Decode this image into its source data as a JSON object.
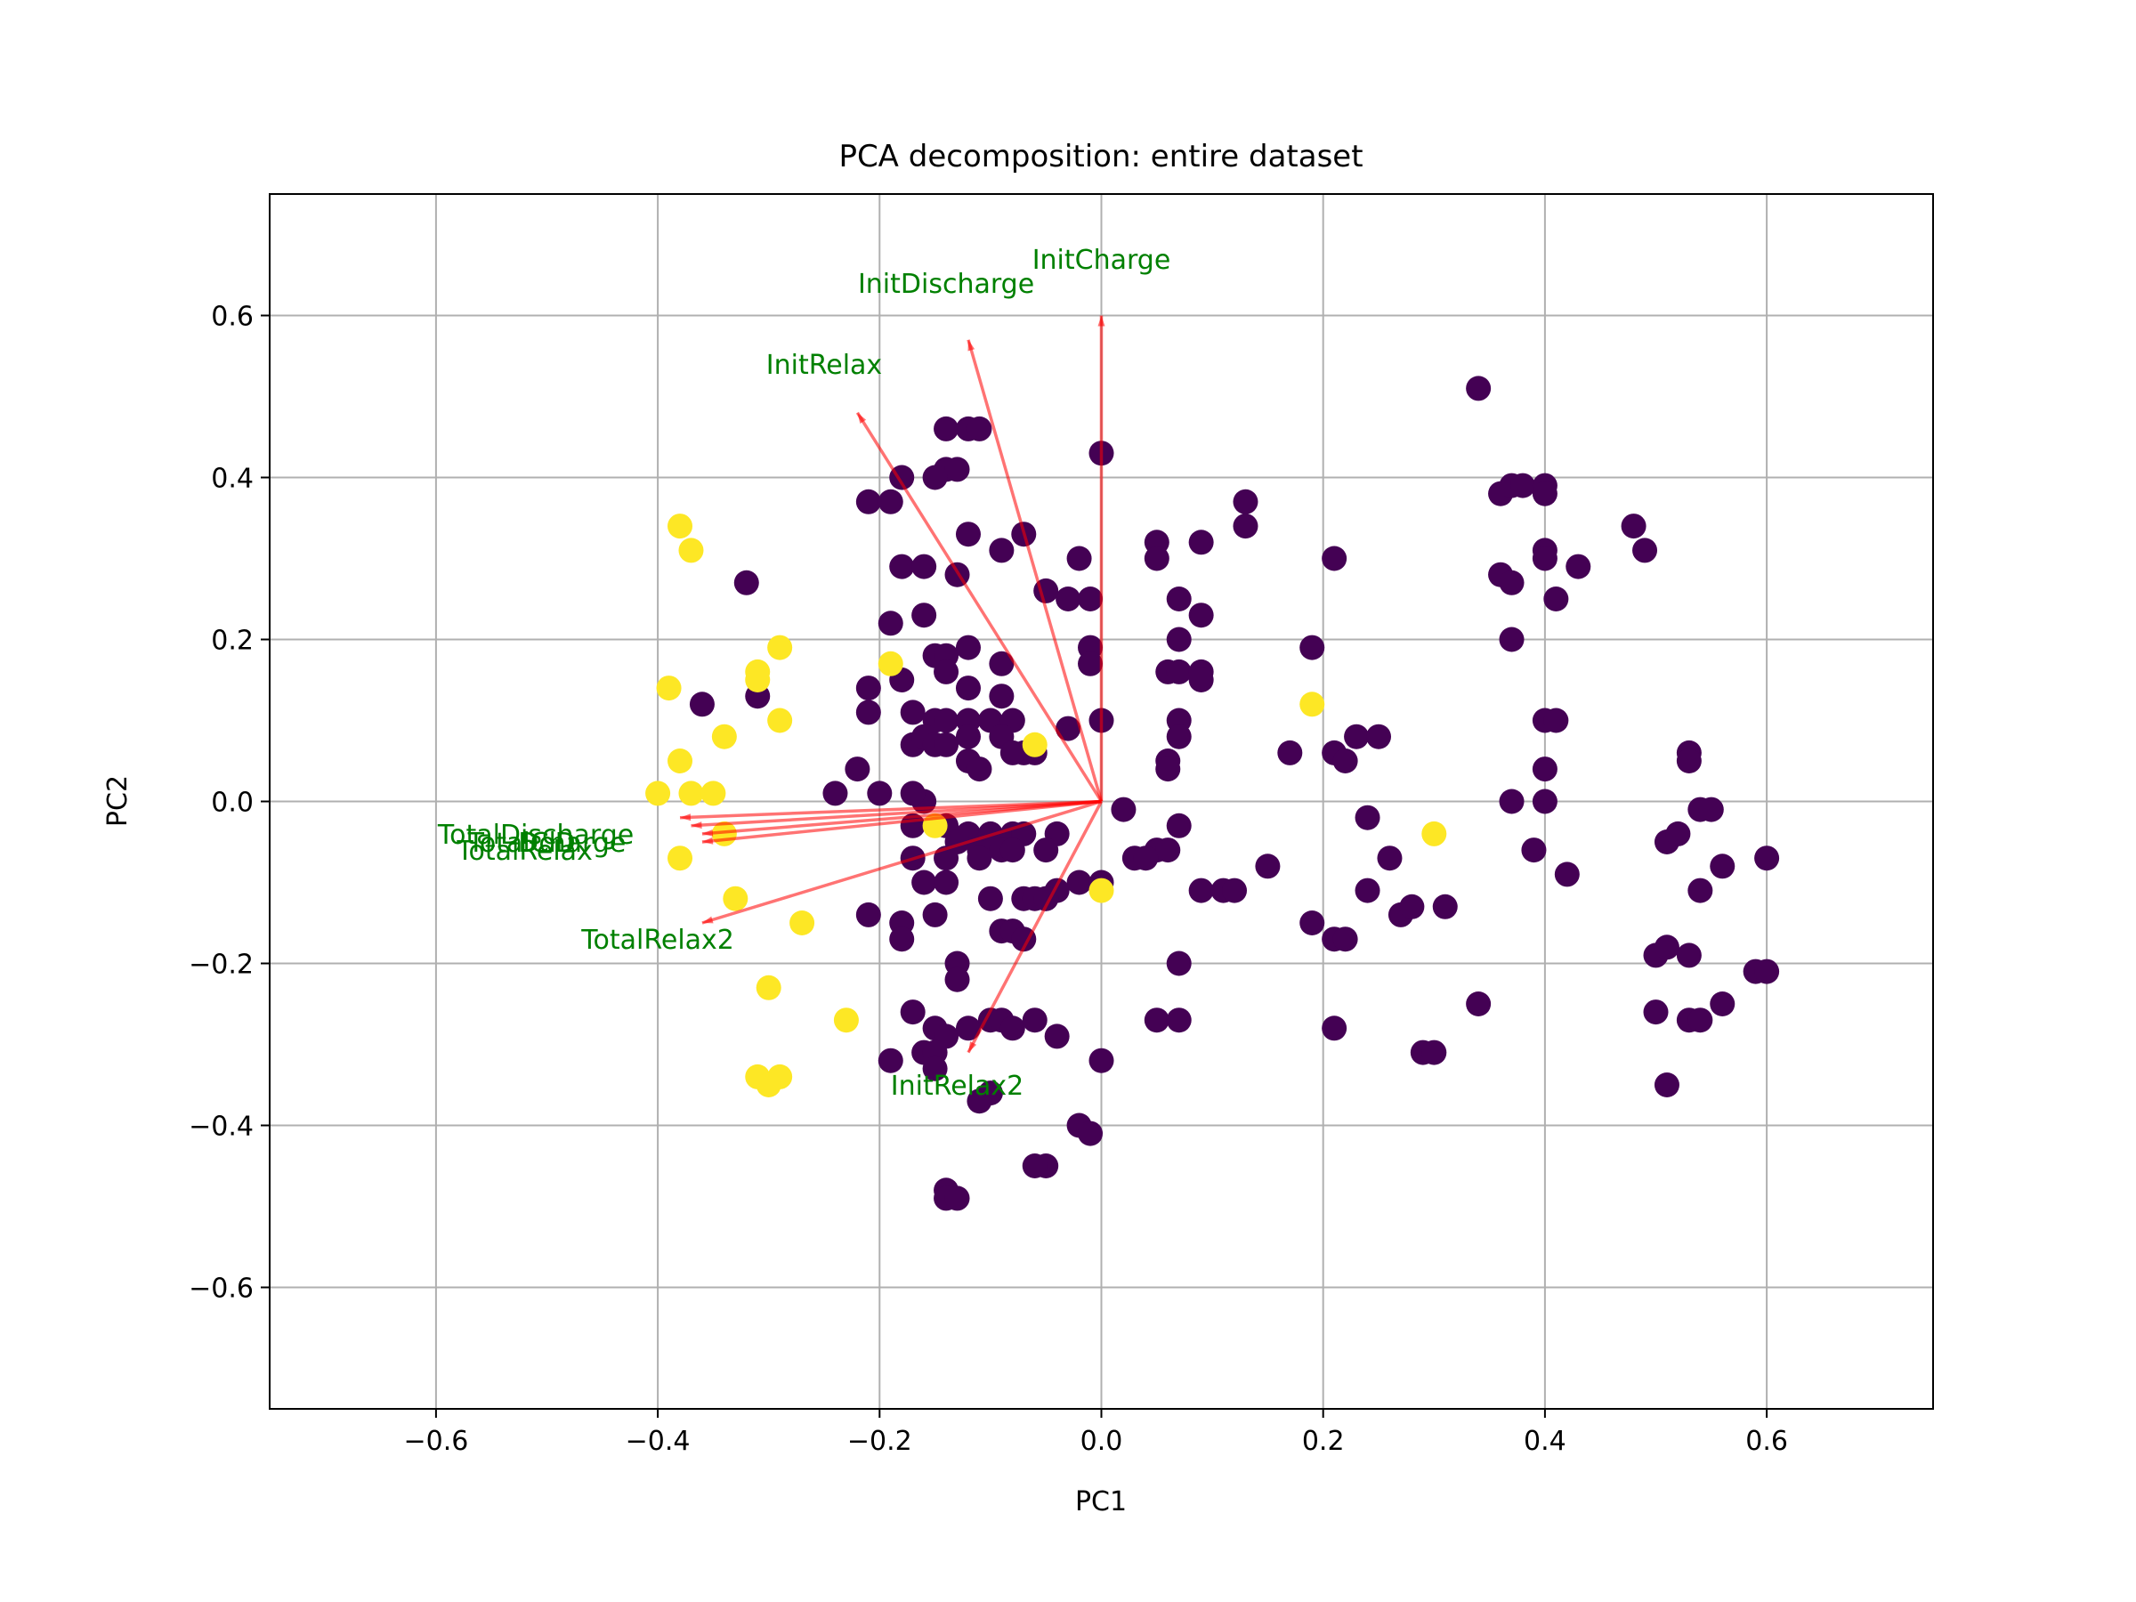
{
  "chart_data": {
    "type": "scatter",
    "title": "PCA decomposition: entire dataset",
    "xlabel": "PC1",
    "ylabel": "PC2",
    "xlim": [
      -0.75,
      0.75
    ],
    "ylim": [
      -0.75,
      0.75
    ],
    "grid": true,
    "x_ticks": [
      -0.6,
      -0.4,
      -0.2,
      0.0,
      0.2,
      0.4,
      0.6
    ],
    "y_ticks": [
      -0.6,
      -0.4,
      -0.2,
      0.0,
      0.2,
      0.4,
      0.6
    ],
    "x_tick_labels": [
      "−0.6",
      "−0.4",
      "−0.2",
      "0.0",
      "0.2",
      "0.4",
      "0.6"
    ],
    "y_tick_labels": [
      "−0.6",
      "−0.4",
      "−0.2",
      "0.0",
      "0.2",
      "0.4",
      "0.6"
    ],
    "colors": {
      "class_0": "#440154",
      "class_1": "#fde725",
      "arrow": "#ff0000",
      "label": "#008000",
      "grid": "#b0b0b0"
    },
    "series": [
      {
        "class": "class_0",
        "points": [
          [
            0.34,
            0.51
          ],
          [
            0.36,
            0.38
          ],
          [
            0.37,
            0.39
          ],
          [
            0.38,
            0.39
          ],
          [
            0.4,
            0.39
          ],
          [
            0.4,
            0.38
          ],
          [
            0.36,
            0.28
          ],
          [
            0.37,
            0.27
          ],
          [
            0.4,
            0.31
          ],
          [
            0.4,
            0.3
          ],
          [
            0.43,
            0.29
          ],
          [
            0.41,
            0.25
          ],
          [
            0.37,
            0.2
          ],
          [
            0.48,
            0.34
          ],
          [
            0.49,
            0.31
          ],
          [
            0.4,
            0.1
          ],
          [
            0.41,
            0.1
          ],
          [
            0.4,
            0.04
          ],
          [
            0.37,
            -0.0
          ],
          [
            0.4,
            -0.0
          ],
          [
            0.39,
            -0.06
          ],
          [
            0.42,
            -0.09
          ],
          [
            0.53,
            0.06
          ],
          [
            0.53,
            0.05
          ],
          [
            0.51,
            -0.05
          ],
          [
            0.52,
            -0.04
          ],
          [
            0.54,
            -0.01
          ],
          [
            0.55,
            -0.01
          ],
          [
            0.56,
            -0.08
          ],
          [
            0.54,
            -0.11
          ],
          [
            0.6,
            -0.07
          ],
          [
            0.5,
            -0.19
          ],
          [
            0.51,
            -0.18
          ],
          [
            0.53,
            -0.19
          ],
          [
            0.59,
            -0.21
          ],
          [
            0.6,
            -0.21
          ],
          [
            0.56,
            -0.25
          ],
          [
            0.5,
            -0.26
          ],
          [
            0.53,
            -0.27
          ],
          [
            0.54,
            -0.27
          ],
          [
            0.51,
            -0.35
          ],
          [
            0.21,
            0.3
          ],
          [
            0.19,
            0.19
          ],
          [
            0.17,
            0.06
          ],
          [
            0.21,
            0.06
          ],
          [
            0.22,
            0.05
          ],
          [
            0.23,
            0.08
          ],
          [
            0.25,
            0.08
          ],
          [
            0.24,
            -0.02
          ],
          [
            0.26,
            -0.07
          ],
          [
            0.24,
            -0.11
          ],
          [
            0.27,
            -0.14
          ],
          [
            0.28,
            -0.13
          ],
          [
            0.31,
            -0.13
          ],
          [
            0.19,
            -0.15
          ],
          [
            0.21,
            -0.17
          ],
          [
            0.22,
            -0.17
          ],
          [
            0.21,
            -0.28
          ],
          [
            0.29,
            -0.31
          ],
          [
            0.3,
            -0.31
          ],
          [
            0.34,
            -0.25
          ],
          [
            0.13,
            0.37
          ],
          [
            0.13,
            0.34
          ],
          [
            0.09,
            0.32
          ],
          [
            0.05,
            0.32
          ],
          [
            0.05,
            0.3
          ],
          [
            0.07,
            0.25
          ],
          [
            0.09,
            0.23
          ],
          [
            0.07,
            0.2
          ],
          [
            0.06,
            0.16
          ],
          [
            0.07,
            0.16
          ],
          [
            0.09,
            0.16
          ],
          [
            0.09,
            0.15
          ],
          [
            0.07,
            0.1
          ],
          [
            0.07,
            0.08
          ],
          [
            0.06,
            0.05
          ],
          [
            0.06,
            0.04
          ],
          [
            0.07,
            -0.03
          ],
          [
            0.05,
            -0.06
          ],
          [
            0.06,
            -0.06
          ],
          [
            0.03,
            -0.07
          ],
          [
            0.04,
            -0.07
          ],
          [
            0.09,
            -0.11
          ],
          [
            0.11,
            -0.11
          ],
          [
            0.12,
            -0.11
          ],
          [
            0.15,
            -0.08
          ],
          [
            0.07,
            -0.2
          ],
          [
            0.05,
            -0.27
          ],
          [
            0.07,
            -0.27
          ],
          [
            0.02,
            -0.01
          ],
          [
            0.0,
            0.43
          ],
          [
            -0.02,
            0.3
          ],
          [
            -0.03,
            0.25
          ],
          [
            -0.01,
            0.25
          ],
          [
            -0.05,
            0.26
          ],
          [
            -0.01,
            0.19
          ],
          [
            -0.01,
            0.17
          ],
          [
            0.0,
            0.1
          ],
          [
            -0.03,
            0.09
          ],
          [
            -0.06,
            0.06
          ],
          [
            -0.07,
            0.06
          ],
          [
            -0.04,
            -0.04
          ],
          [
            -0.05,
            -0.06
          ],
          [
            -0.02,
            -0.1
          ],
          [
            0.0,
            -0.1
          ],
          [
            -0.04,
            -0.11
          ],
          [
            -0.05,
            -0.12
          ],
          [
            -0.04,
            -0.29
          ],
          [
            -0.0,
            -0.32
          ],
          [
            -0.02,
            -0.4
          ],
          [
            -0.01,
            -0.41
          ],
          [
            -0.05,
            -0.45
          ],
          [
            -0.06,
            -0.45
          ],
          [
            -0.12,
            0.46
          ],
          [
            -0.11,
            0.46
          ],
          [
            -0.14,
            0.46
          ],
          [
            -0.14,
            0.41
          ],
          [
            -0.13,
            0.41
          ],
          [
            -0.15,
            0.4
          ],
          [
            -0.18,
            0.4
          ],
          [
            -0.21,
            0.37
          ],
          [
            -0.19,
            0.37
          ],
          [
            -0.12,
            0.33
          ],
          [
            -0.09,
            0.31
          ],
          [
            -0.07,
            0.33
          ],
          [
            -0.18,
            0.29
          ],
          [
            -0.16,
            0.29
          ],
          [
            -0.13,
            0.28
          ],
          [
            -0.19,
            0.22
          ],
          [
            -0.16,
            0.23
          ],
          [
            -0.15,
            0.18
          ],
          [
            -0.14,
            0.18
          ],
          [
            -0.12,
            0.19
          ],
          [
            -0.09,
            0.17
          ],
          [
            -0.14,
            0.16
          ],
          [
            -0.12,
            0.14
          ],
          [
            -0.09,
            0.13
          ],
          [
            -0.21,
            0.14
          ],
          [
            -0.18,
            0.15
          ],
          [
            -0.17,
            0.11
          ],
          [
            -0.15,
            0.1
          ],
          [
            -0.14,
            0.1
          ],
          [
            -0.12,
            0.1
          ],
          [
            -0.1,
            0.1
          ],
          [
            -0.08,
            0.1
          ],
          [
            -0.21,
            0.11
          ],
          [
            -0.17,
            0.07
          ],
          [
            -0.16,
            0.08
          ],
          [
            -0.15,
            0.07
          ],
          [
            -0.14,
            0.07
          ],
          [
            -0.12,
            0.08
          ],
          [
            -0.09,
            0.08
          ],
          [
            -0.08,
            0.06
          ],
          [
            -0.12,
            0.05
          ],
          [
            -0.11,
            0.04
          ],
          [
            -0.22,
            0.04
          ],
          [
            -0.24,
            0.01
          ],
          [
            -0.2,
            0.01
          ],
          [
            -0.16,
            0.0
          ],
          [
            -0.17,
            -0.03
          ],
          [
            -0.14,
            -0.03
          ],
          [
            -0.12,
            -0.04
          ],
          [
            -0.1,
            -0.04
          ],
          [
            -0.08,
            -0.04
          ],
          [
            -0.07,
            -0.04
          ],
          [
            -0.13,
            -0.05
          ],
          [
            -0.11,
            -0.06
          ],
          [
            -0.09,
            -0.06
          ],
          [
            -0.08,
            -0.06
          ],
          [
            -0.17,
            -0.07
          ],
          [
            -0.14,
            -0.07
          ],
          [
            -0.11,
            -0.07
          ],
          [
            -0.16,
            -0.1
          ],
          [
            -0.14,
            -0.1
          ],
          [
            -0.15,
            -0.14
          ],
          [
            -0.1,
            -0.12
          ],
          [
            -0.07,
            -0.12
          ],
          [
            -0.06,
            -0.12
          ],
          [
            -0.05,
            -0.12
          ],
          [
            -0.21,
            -0.14
          ],
          [
            -0.18,
            -0.15
          ],
          [
            -0.18,
            -0.17
          ],
          [
            -0.09,
            -0.16
          ],
          [
            -0.08,
            -0.16
          ],
          [
            -0.07,
            -0.17
          ],
          [
            -0.13,
            -0.2
          ],
          [
            -0.13,
            -0.22
          ],
          [
            -0.17,
            -0.26
          ],
          [
            -0.15,
            -0.28
          ],
          [
            -0.14,
            -0.29
          ],
          [
            -0.12,
            -0.28
          ],
          [
            -0.1,
            -0.27
          ],
          [
            -0.09,
            -0.27
          ],
          [
            -0.08,
            -0.28
          ],
          [
            -0.06,
            -0.27
          ],
          [
            -0.19,
            -0.32
          ],
          [
            -0.16,
            -0.31
          ],
          [
            -0.15,
            -0.31
          ],
          [
            -0.15,
            -0.33
          ],
          [
            -0.1,
            -0.36
          ],
          [
            -0.11,
            -0.37
          ],
          [
            -0.32,
            0.27
          ],
          [
            -0.36,
            0.12
          ],
          [
            -0.31,
            0.13
          ],
          [
            -0.14,
            -0.48
          ],
          [
            -0.14,
            -0.49
          ],
          [
            -0.13,
            -0.49
          ],
          [
            -0.17,
            0.01
          ]
        ]
      },
      {
        "class": "class_1",
        "points": [
          [
            -0.38,
            0.34
          ],
          [
            -0.37,
            0.31
          ],
          [
            -0.29,
            0.19
          ],
          [
            -0.31,
            0.16
          ],
          [
            -0.31,
            0.15
          ],
          [
            -0.39,
            0.14
          ],
          [
            -0.29,
            0.1
          ],
          [
            -0.34,
            0.08
          ],
          [
            -0.38,
            0.05
          ],
          [
            -0.4,
            0.01
          ],
          [
            -0.37,
            0.01
          ],
          [
            -0.35,
            0.01
          ],
          [
            -0.34,
            -0.04
          ],
          [
            -0.38,
            -0.07
          ],
          [
            -0.33,
            -0.12
          ],
          [
            -0.27,
            -0.15
          ],
          [
            -0.3,
            -0.23
          ],
          [
            -0.23,
            -0.27
          ],
          [
            -0.31,
            -0.34
          ],
          [
            -0.29,
            -0.34
          ],
          [
            -0.3,
            -0.35
          ],
          [
            -0.19,
            0.17
          ],
          [
            -0.15,
            -0.03
          ],
          [
            -0.06,
            0.07
          ],
          [
            0.0,
            -0.11
          ],
          [
            0.19,
            0.12
          ],
          [
            0.3,
            -0.04
          ]
        ]
      }
    ],
    "loadings": [
      {
        "label": "InitCharge",
        "dx": 0.0,
        "dy": 0.6,
        "lx": 0.0,
        "ly": 0.67
      },
      {
        "label": "InitDischarge",
        "dx": -0.12,
        "dy": 0.57,
        "lx": -0.14,
        "ly": 0.64
      },
      {
        "label": "InitRelax",
        "dx": -0.22,
        "dy": 0.48,
        "lx": -0.25,
        "ly": 0.54
      },
      {
        "label": "TotalDischarge",
        "dx": -0.38,
        "dy": -0.02,
        "lx": -0.51,
        "ly": -0.04
      },
      {
        "label": "TotalCharge",
        "dx": -0.37,
        "dy": -0.03,
        "lx": -0.5,
        "ly": -0.05
      },
      {
        "label": "DoD",
        "dx": -0.36,
        "dy": -0.04,
        "lx": -0.5,
        "ly": -0.05
      },
      {
        "label": "TotalRelax",
        "dx": -0.36,
        "dy": -0.05,
        "lx": -0.52,
        "ly": -0.06
      },
      {
        "label": "TotalRelax2",
        "dx": -0.36,
        "dy": -0.15,
        "lx": -0.4,
        "ly": -0.17
      },
      {
        "label": "InitRelax2",
        "dx": -0.12,
        "dy": -0.31,
        "lx": -0.13,
        "ly": -0.35
      }
    ]
  }
}
